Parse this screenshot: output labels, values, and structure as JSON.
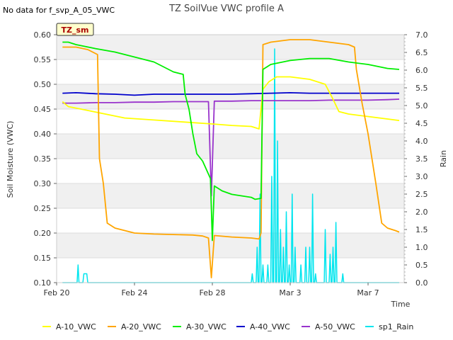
{
  "chart_data": {
    "type": "line",
    "title": "TZ SoilVue VWC profile A",
    "note": "No data for f_svp_A_05_VWC",
    "badge": "TZ_sm",
    "xlabel": "Time",
    "ylabel": "Soil Moisture (VWC)",
    "y2label": "Rain",
    "xlim_days": [
      0,
      20
    ],
    "ylim": [
      0.1,
      0.6
    ],
    "y2lim": [
      0.0,
      7.0
    ],
    "x_ticks": [
      {
        "day": 0,
        "label": "Feb 20"
      },
      {
        "day": 4,
        "label": "Feb 24"
      },
      {
        "day": 8,
        "label": "Feb 28"
      },
      {
        "day": 12,
        "label": "Mar 3"
      },
      {
        "day": 16,
        "label": "Mar 7"
      }
    ],
    "y_ticks": [
      "0.10",
      "0.15",
      "0.20",
      "0.25",
      "0.30",
      "0.35",
      "0.40",
      "0.45",
      "0.50",
      "0.55",
      "0.60"
    ],
    "y2_ticks": [
      "0.0",
      "0.5",
      "1.0",
      "1.5",
      "2.0",
      "2.5",
      "3.0",
      "3.5",
      "4.0",
      "4.5",
      "5.0",
      "5.5",
      "6.0",
      "6.5",
      "7.0"
    ],
    "grid": "horizontal bands",
    "legend_position": "bottom",
    "series": [
      {
        "name": "A-10_VWC",
        "axis": "left",
        "color": "#ffff00",
        "points": [
          [
            0.3,
            0.465
          ],
          [
            0.6,
            0.455
          ],
          [
            1.5,
            0.448
          ],
          [
            2.5,
            0.44
          ],
          [
            3.5,
            0.432
          ],
          [
            5,
            0.428
          ],
          [
            6.5,
            0.424
          ],
          [
            8,
            0.42
          ],
          [
            9,
            0.417
          ],
          [
            10,
            0.415
          ],
          [
            10.4,
            0.41
          ],
          [
            10.6,
            0.49
          ],
          [
            10.9,
            0.505
          ],
          [
            11.3,
            0.515
          ],
          [
            12,
            0.515
          ],
          [
            13,
            0.51
          ],
          [
            13.8,
            0.5
          ],
          [
            14.2,
            0.47
          ],
          [
            14.5,
            0.445
          ],
          [
            15,
            0.44
          ],
          [
            16,
            0.435
          ],
          [
            17,
            0.43
          ],
          [
            17.6,
            0.427
          ]
        ]
      },
      {
        "name": "A-20_VWC",
        "axis": "left",
        "color": "#ffa500",
        "points": [
          [
            0.3,
            0.575
          ],
          [
            1,
            0.575
          ],
          [
            1.6,
            0.57
          ],
          [
            2.1,
            0.56
          ],
          [
            2.2,
            0.35
          ],
          [
            2.4,
            0.3
          ],
          [
            2.6,
            0.22
          ],
          [
            3,
            0.21
          ],
          [
            4,
            0.2
          ],
          [
            5,
            0.198
          ],
          [
            6,
            0.197
          ],
          [
            7,
            0.196
          ],
          [
            7.5,
            0.194
          ],
          [
            7.8,
            0.19
          ],
          [
            7.95,
            0.11
          ],
          [
            8.1,
            0.195
          ],
          [
            9,
            0.192
          ],
          [
            10,
            0.19
          ],
          [
            10.4,
            0.188
          ],
          [
            10.5,
            0.2
          ],
          [
            10.6,
            0.58
          ],
          [
            11,
            0.585
          ],
          [
            12,
            0.59
          ],
          [
            13,
            0.59
          ],
          [
            14,
            0.585
          ],
          [
            15,
            0.58
          ],
          [
            15.3,
            0.575
          ],
          [
            15.4,
            0.53
          ],
          [
            15.7,
            0.46
          ],
          [
            16,
            0.4
          ],
          [
            16.4,
            0.3
          ],
          [
            16.7,
            0.22
          ],
          [
            17,
            0.21
          ],
          [
            17.4,
            0.205
          ],
          [
            17.6,
            0.202
          ]
        ]
      },
      {
        "name": "A-30_VWC",
        "axis": "left",
        "color": "#00ee00",
        "points": [
          [
            0.3,
            0.585
          ],
          [
            0.6,
            0.585
          ],
          [
            1,
            0.58
          ],
          [
            2,
            0.572
          ],
          [
            3,
            0.565
          ],
          [
            4,
            0.555
          ],
          [
            5,
            0.545
          ],
          [
            5.5,
            0.535
          ],
          [
            6,
            0.525
          ],
          [
            6.5,
            0.52
          ],
          [
            6.6,
            0.48
          ],
          [
            6.8,
            0.45
          ],
          [
            7,
            0.4
          ],
          [
            7.2,
            0.36
          ],
          [
            7.5,
            0.345
          ],
          [
            7.9,
            0.31
          ],
          [
            8,
            0.185
          ],
          [
            8.1,
            0.295
          ],
          [
            8.5,
            0.285
          ],
          [
            9,
            0.278
          ],
          [
            10,
            0.272
          ],
          [
            10.2,
            0.268
          ],
          [
            10.5,
            0.27
          ],
          [
            10.6,
            0.53
          ],
          [
            11,
            0.54
          ],
          [
            12,
            0.548
          ],
          [
            13,
            0.552
          ],
          [
            14,
            0.552
          ],
          [
            15,
            0.545
          ],
          [
            16,
            0.54
          ],
          [
            17,
            0.532
          ],
          [
            17.6,
            0.53
          ]
        ]
      },
      {
        "name": "A-40_VWC",
        "axis": "left",
        "color": "#0000cc",
        "points": [
          [
            0.3,
            0.482
          ],
          [
            1,
            0.483
          ],
          [
            2,
            0.481
          ],
          [
            3,
            0.48
          ],
          [
            4,
            0.478
          ],
          [
            5,
            0.48
          ],
          [
            6,
            0.48
          ],
          [
            7,
            0.48
          ],
          [
            8,
            0.48
          ],
          [
            9,
            0.48
          ],
          [
            10,
            0.481
          ],
          [
            11,
            0.482
          ],
          [
            12,
            0.483
          ],
          [
            13,
            0.482
          ],
          [
            14,
            0.482
          ],
          [
            15,
            0.482
          ],
          [
            16,
            0.482
          ],
          [
            17,
            0.482
          ],
          [
            17.6,
            0.482
          ]
        ]
      },
      {
        "name": "A-50_VWC",
        "axis": "left",
        "color": "#9933cc",
        "points": [
          [
            0.3,
            0.462
          ],
          [
            1,
            0.462
          ],
          [
            2,
            0.463
          ],
          [
            3,
            0.463
          ],
          [
            4,
            0.464
          ],
          [
            5,
            0.464
          ],
          [
            6,
            0.465
          ],
          [
            7,
            0.465
          ],
          [
            7.8,
            0.465
          ],
          [
            7.95,
            0.275
          ],
          [
            8.1,
            0.466
          ],
          [
            9,
            0.466
          ],
          [
            10,
            0.467
          ],
          [
            11,
            0.467
          ],
          [
            12,
            0.467
          ],
          [
            13,
            0.467
          ],
          [
            14,
            0.468
          ],
          [
            15,
            0.468
          ],
          [
            16,
            0.468
          ],
          [
            17,
            0.469
          ],
          [
            17.6,
            0.47
          ]
        ]
      },
      {
        "name": "sp1_Rain",
        "axis": "right",
        "color": "#00e5ee",
        "points": [
          [
            0.3,
            0
          ],
          [
            1.05,
            0
          ],
          [
            1.1,
            0.5
          ],
          [
            1.15,
            0
          ],
          [
            1.35,
            0
          ],
          [
            1.4,
            0.25
          ],
          [
            1.55,
            0.25
          ],
          [
            1.6,
            0
          ],
          [
            10,
            0
          ],
          [
            10.05,
            0.25
          ],
          [
            10.1,
            0
          ],
          [
            10.25,
            0
          ],
          [
            10.3,
            1
          ],
          [
            10.35,
            0
          ],
          [
            10.4,
            0
          ],
          [
            10.45,
            2.5
          ],
          [
            10.5,
            0
          ],
          [
            10.55,
            0
          ],
          [
            10.6,
            0.5
          ],
          [
            10.65,
            0
          ],
          [
            10.8,
            0
          ],
          [
            10.85,
            0.5
          ],
          [
            10.9,
            0
          ],
          [
            11,
            0
          ],
          [
            11.05,
            3
          ],
          [
            11.1,
            0
          ],
          [
            11.15,
            0
          ],
          [
            11.2,
            6.6
          ],
          [
            11.25,
            0
          ],
          [
            11.3,
            0
          ],
          [
            11.35,
            4
          ],
          [
            11.4,
            0
          ],
          [
            11.45,
            0
          ],
          [
            11.5,
            1.5
          ],
          [
            11.55,
            0
          ],
          [
            11.6,
            0
          ],
          [
            11.65,
            1
          ],
          [
            11.7,
            0
          ],
          [
            11.75,
            0
          ],
          [
            11.8,
            2
          ],
          [
            11.85,
            0
          ],
          [
            11.9,
            0
          ],
          [
            11.95,
            0.5
          ],
          [
            12,
            0
          ],
          [
            12.05,
            0
          ],
          [
            12.1,
            2.5
          ],
          [
            12.15,
            0
          ],
          [
            12.2,
            0
          ],
          [
            12.25,
            1
          ],
          [
            12.3,
            0
          ],
          [
            12.5,
            0
          ],
          [
            12.55,
            0.5
          ],
          [
            12.6,
            0
          ],
          [
            12.75,
            0
          ],
          [
            12.8,
            1
          ],
          [
            12.85,
            0
          ],
          [
            12.95,
            0
          ],
          [
            13,
            1
          ],
          [
            13.05,
            0
          ],
          [
            13.1,
            0
          ],
          [
            13.15,
            2.5
          ],
          [
            13.2,
            0
          ],
          [
            13.25,
            0
          ],
          [
            13.3,
            0.25
          ],
          [
            13.35,
            0
          ],
          [
            13.75,
            0
          ],
          [
            13.8,
            1.5
          ],
          [
            13.85,
            0
          ],
          [
            14,
            0
          ],
          [
            14.05,
            0.8
          ],
          [
            14.1,
            0
          ],
          [
            14.15,
            0
          ],
          [
            14.2,
            1
          ],
          [
            14.25,
            0
          ],
          [
            14.3,
            0
          ],
          [
            14.35,
            1.7
          ],
          [
            14.4,
            0
          ],
          [
            14.65,
            0
          ],
          [
            14.7,
            0.25
          ],
          [
            14.75,
            0
          ],
          [
            17.6,
            0
          ]
        ]
      }
    ]
  }
}
